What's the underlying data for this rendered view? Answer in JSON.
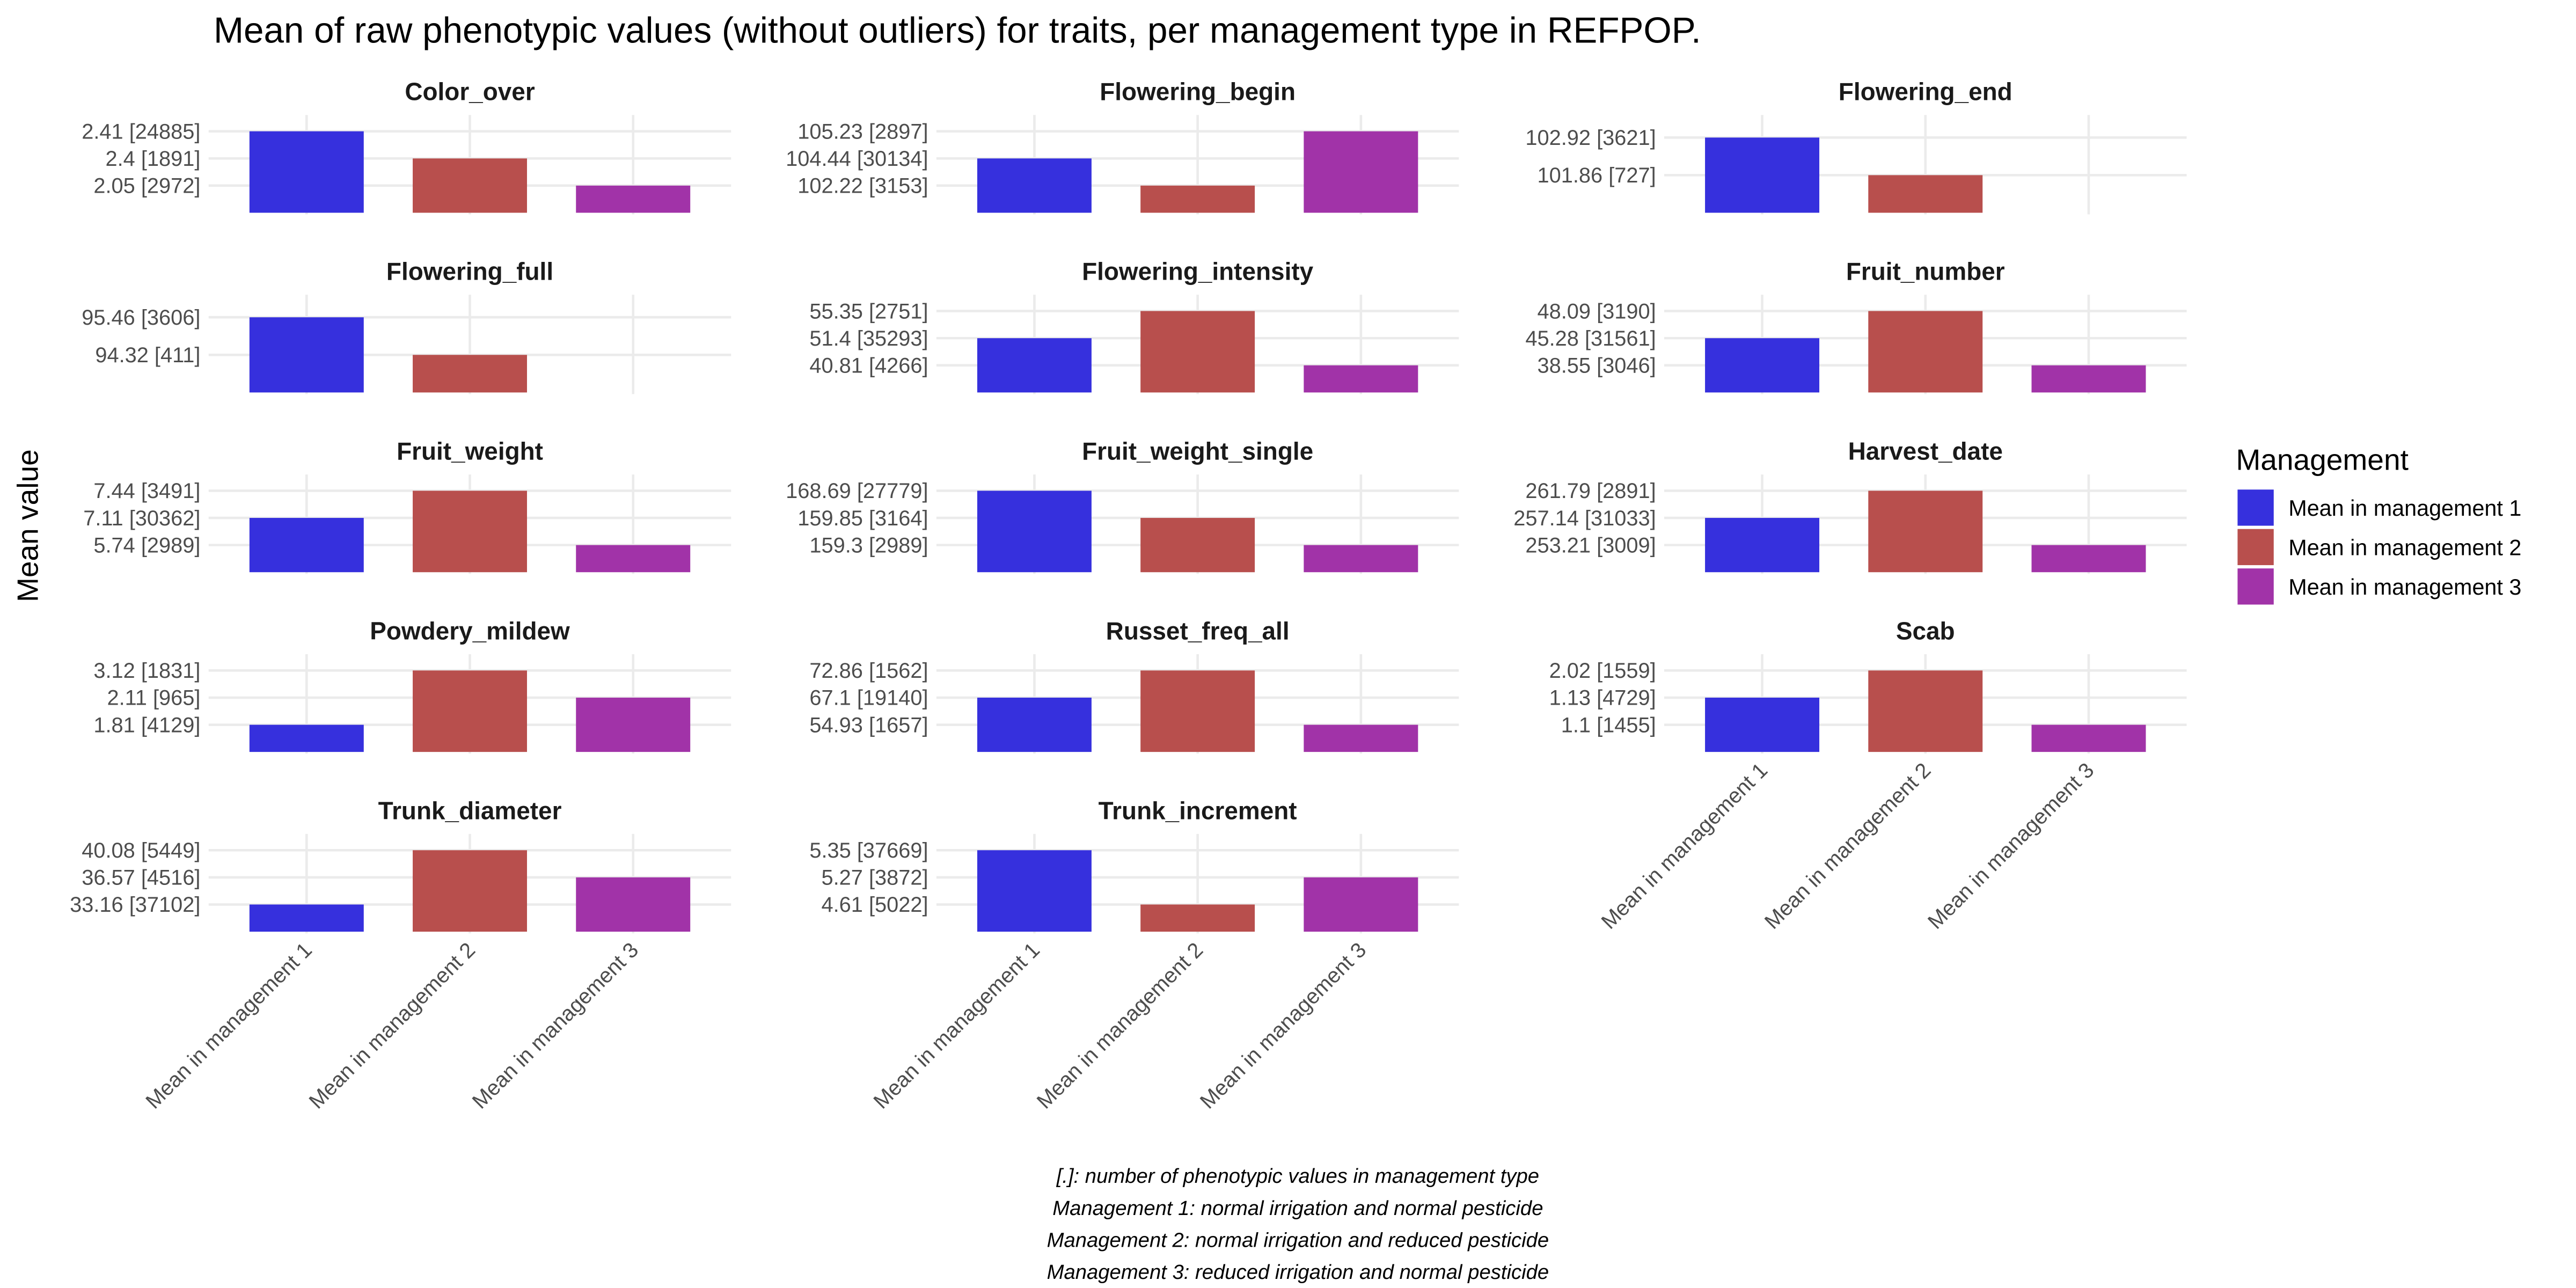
{
  "chart_data": {
    "type": "bar",
    "title": "Mean of raw phenotypic values (without outliers) for traits, per management type in REFPOP.",
    "y_label": "Mean value",
    "legend_title": "Management",
    "categories": [
      "Mean in management 1",
      "Mean in management 2",
      "Mean in management 3"
    ],
    "colors": [
      "#3630dd",
      "#b84f4d",
      "#a133a8"
    ],
    "legend_position": "right",
    "grid": true,
    "facets": [
      {
        "title": "Color_over",
        "values": [
          2.41,
          2.4,
          2.05
        ],
        "value_labels": [
          "2.41 [24885]",
          "2.4 [1891]",
          "2.05 [2972]"
        ]
      },
      {
        "title": "Flowering_begin",
        "values": [
          104.44,
          102.22,
          105.23
        ],
        "value_labels": [
          "104.44 [30134]",
          "102.22 [3153]",
          "105.23 [2897]"
        ]
      },
      {
        "title": "Flowering_end",
        "values": [
          102.92,
          101.86
        ],
        "value_labels": [
          "102.92 [3621]",
          "101.86 [727]"
        ]
      },
      {
        "title": "Flowering_full",
        "values": [
          95.46,
          94.32
        ],
        "value_labels": [
          "95.46 [3606]",
          "94.32 [411]"
        ]
      },
      {
        "title": "Flowering_intensity",
        "values": [
          51.4,
          55.35,
          40.81
        ],
        "value_labels": [
          "51.4 [35293]",
          "55.35 [2751]",
          "40.81 [4266]"
        ]
      },
      {
        "title": "Fruit_number",
        "values": [
          45.28,
          48.09,
          38.55
        ],
        "value_labels": [
          "45.28 [31561]",
          "48.09 [3190]",
          "38.55 [3046]"
        ]
      },
      {
        "title": "Fruit_weight",
        "values": [
          7.11,
          7.44,
          5.74
        ],
        "value_labels": [
          "7.11 [30362]",
          "7.44 [3491]",
          "5.74 [2989]"
        ]
      },
      {
        "title": "Fruit_weight_single",
        "values": [
          168.69,
          159.85,
          159.3
        ],
        "value_labels": [
          "168.69 [27779]",
          "159.85 [3164]",
          "159.3 [2989]"
        ]
      },
      {
        "title": "Harvest_date",
        "values": [
          257.14,
          261.79,
          253.21
        ],
        "value_labels": [
          "257.14 [31033]",
          "261.79 [2891]",
          "253.21 [3009]"
        ]
      },
      {
        "title": "Powdery_mildew",
        "values": [
          1.81,
          3.12,
          2.11
        ],
        "value_labels": [
          "1.81 [4129]",
          "3.12 [1831]",
          "2.11 [965]"
        ]
      },
      {
        "title": "Russet_freq_all",
        "values": [
          67.1,
          72.86,
          54.93
        ],
        "value_labels": [
          "67.1 [19140]",
          "72.86 [1562]",
          "54.93 [1657]"
        ]
      },
      {
        "title": "Scab",
        "values": [
          1.13,
          2.02,
          1.1
        ],
        "value_labels": [
          "1.13 [4729]",
          "2.02 [1559]",
          "1.1 [1455]"
        ]
      },
      {
        "title": "Trunk_diameter",
        "values": [
          33.16,
          40.08,
          36.57
        ],
        "value_labels": [
          "33.16 [37102]",
          "40.08 [5449]",
          "36.57 [4516]"
        ]
      },
      {
        "title": "Trunk_increment",
        "values": [
          5.35,
          4.61,
          5.27
        ],
        "value_labels": [
          "5.35 [37669]",
          "4.61 [5022]",
          "5.27 [3872]"
        ]
      }
    ],
    "notes": [
      "[.]: number of phenotypic values in management type",
      "Management 1: normal irrigation and normal pesticide",
      "Management 2: normal irrigation and reduced pesticide",
      "Management 3: reduced irrigation and normal pesticide"
    ]
  }
}
